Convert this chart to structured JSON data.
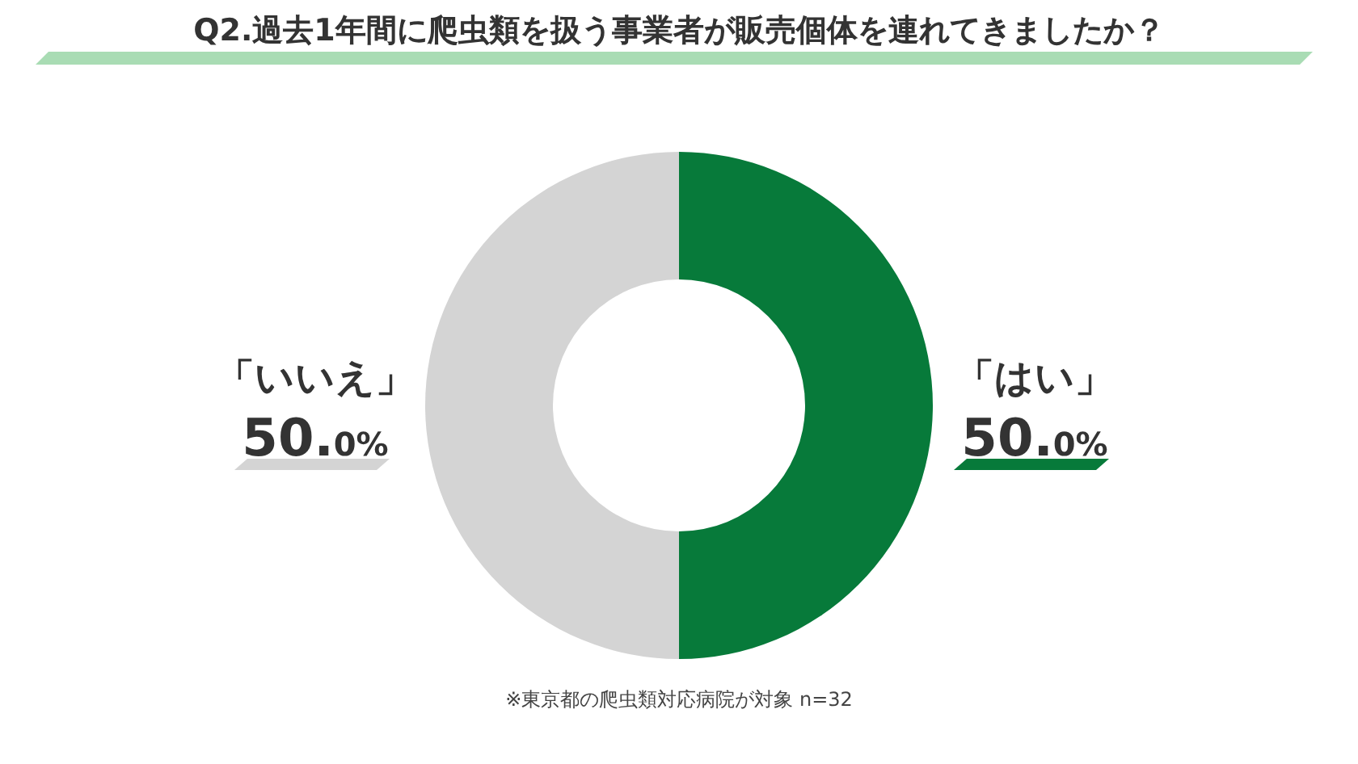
{
  "chart_data": {
    "type": "donut",
    "title": "Q2.過去1年間に爬虫類を扱う事業者が販売個体を連れてきましたか？",
    "categories": [
      "「はい」",
      "「いいえ」"
    ],
    "values": [
      50,
      50
    ],
    "colors": [
      "#077a3a",
      "#d4d4d4"
    ],
    "value_labels": [
      "50.0%",
      "50.0%"
    ],
    "annotations": [
      "※東京都の爬虫類対応病院が対象 n=32"
    ]
  }
}
